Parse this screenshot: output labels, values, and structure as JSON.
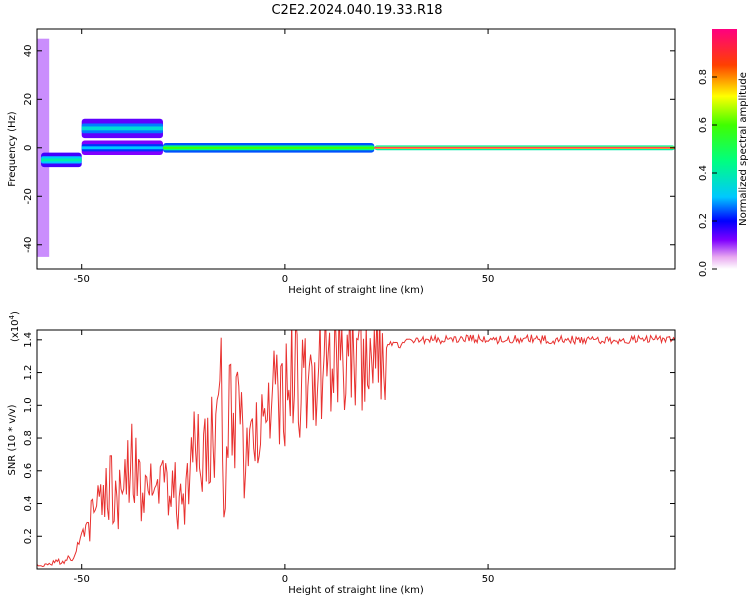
{
  "title": "C2E2.2024.040.19.33.R18",
  "colors": {
    "snr_line": "#e8312f",
    "axis": "#000000"
  },
  "chart_data": [
    {
      "type": "heatmap",
      "xlabel": "Height of straight line (km)",
      "ylabel": "Frequency (Hz)",
      "xlim": [
        -61,
        96
      ],
      "ylim": [
        -50,
        49
      ],
      "xticks": [
        "-50",
        "0",
        "50"
      ],
      "yticks": [
        "40",
        "20",
        "0",
        "-20",
        "-40"
      ],
      "colorbar": {
        "label": "Normalized spectral amplitude",
        "range": [
          0,
          1
        ],
        "ticks": [
          "0.0",
          "0.2",
          "0.4",
          "0.6",
          "0.8"
        ],
        "colormap": "rainbow (white→magenta→blue→cyan→green→yellow→red)"
      },
      "features": [
        {
          "x_range": [
            -61,
            -58
          ],
          "freq_range": [
            -45,
            45
          ],
          "amplitude": 0.1
        },
        {
          "x_range": [
            -60,
            -50
          ],
          "freq_center": -5,
          "freq_width": 6,
          "amplitude": 0.4
        },
        {
          "x_range": [
            -50,
            -30
          ],
          "freq_center": 8,
          "freq_width": 8,
          "amplitude": 0.35
        },
        {
          "x_range": [
            -50,
            -30
          ],
          "freq_center": 0,
          "freq_width": 6,
          "amplitude": 0.3
        },
        {
          "x_range": [
            -30,
            22
          ],
          "freq_center": 0,
          "freq_width": 4,
          "amplitude": 0.6
        },
        {
          "x_range": [
            22,
            96
          ],
          "freq_center": 0,
          "freq_width": 2,
          "amplitude": 1.0
        }
      ]
    },
    {
      "type": "line",
      "xlabel": "Height of straight line (km)",
      "ylabel": "SNR (10 * v/v)",
      "scale_label": "(x10",
      "scale_exp": "4",
      "scale_close": ")",
      "xlim": [
        -61,
        96
      ],
      "ylim": [
        0,
        1.46
      ],
      "xticks": [
        "-50",
        "0",
        "50"
      ],
      "yticks": [
        "0.2",
        "0.4",
        "0.6",
        "0.8",
        "1.0",
        "1.2",
        "1.4"
      ],
      "series": [
        {
          "x": [
            -61,
            -57,
            -54,
            -51,
            -49,
            -47,
            -45,
            -43,
            -41,
            -39,
            -37,
            -35,
            -33,
            -31,
            -29,
            -27,
            -25,
            -23,
            -21,
            -19,
            -17,
            -16,
            -15,
            -14,
            -12,
            -10,
            -8,
            -6,
            -4,
            -2,
            0,
            2,
            4,
            6,
            8,
            10,
            12,
            14,
            16,
            18,
            20,
            22,
            25,
            30,
            35,
            40,
            45,
            50,
            55,
            60,
            65,
            70,
            75,
            80,
            85,
            90,
            96
          ],
          "y": [
            0.02,
            0.04,
            0.05,
            0.12,
            0.2,
            0.35,
            0.45,
            0.55,
            0.4,
            0.6,
            0.65,
            0.5,
            0.6,
            0.5,
            0.55,
            0.45,
            0.4,
            0.75,
            0.65,
            0.8,
            0.9,
            1.45,
            0.3,
            0.9,
            0.95,
            0.75,
            0.8,
            0.85,
            1.05,
            1.0,
            1.1,
            1.2,
            1.1,
            1.15,
            1.2,
            1.25,
            1.3,
            1.25,
            1.3,
            1.3,
            1.3,
            1.35,
            1.36,
            1.38,
            1.4,
            1.4,
            1.41,
            1.4,
            1.4,
            1.41,
            1.4,
            1.4,
            1.4,
            1.4,
            1.4,
            1.41,
            1.4
          ]
        }
      ]
    }
  ]
}
